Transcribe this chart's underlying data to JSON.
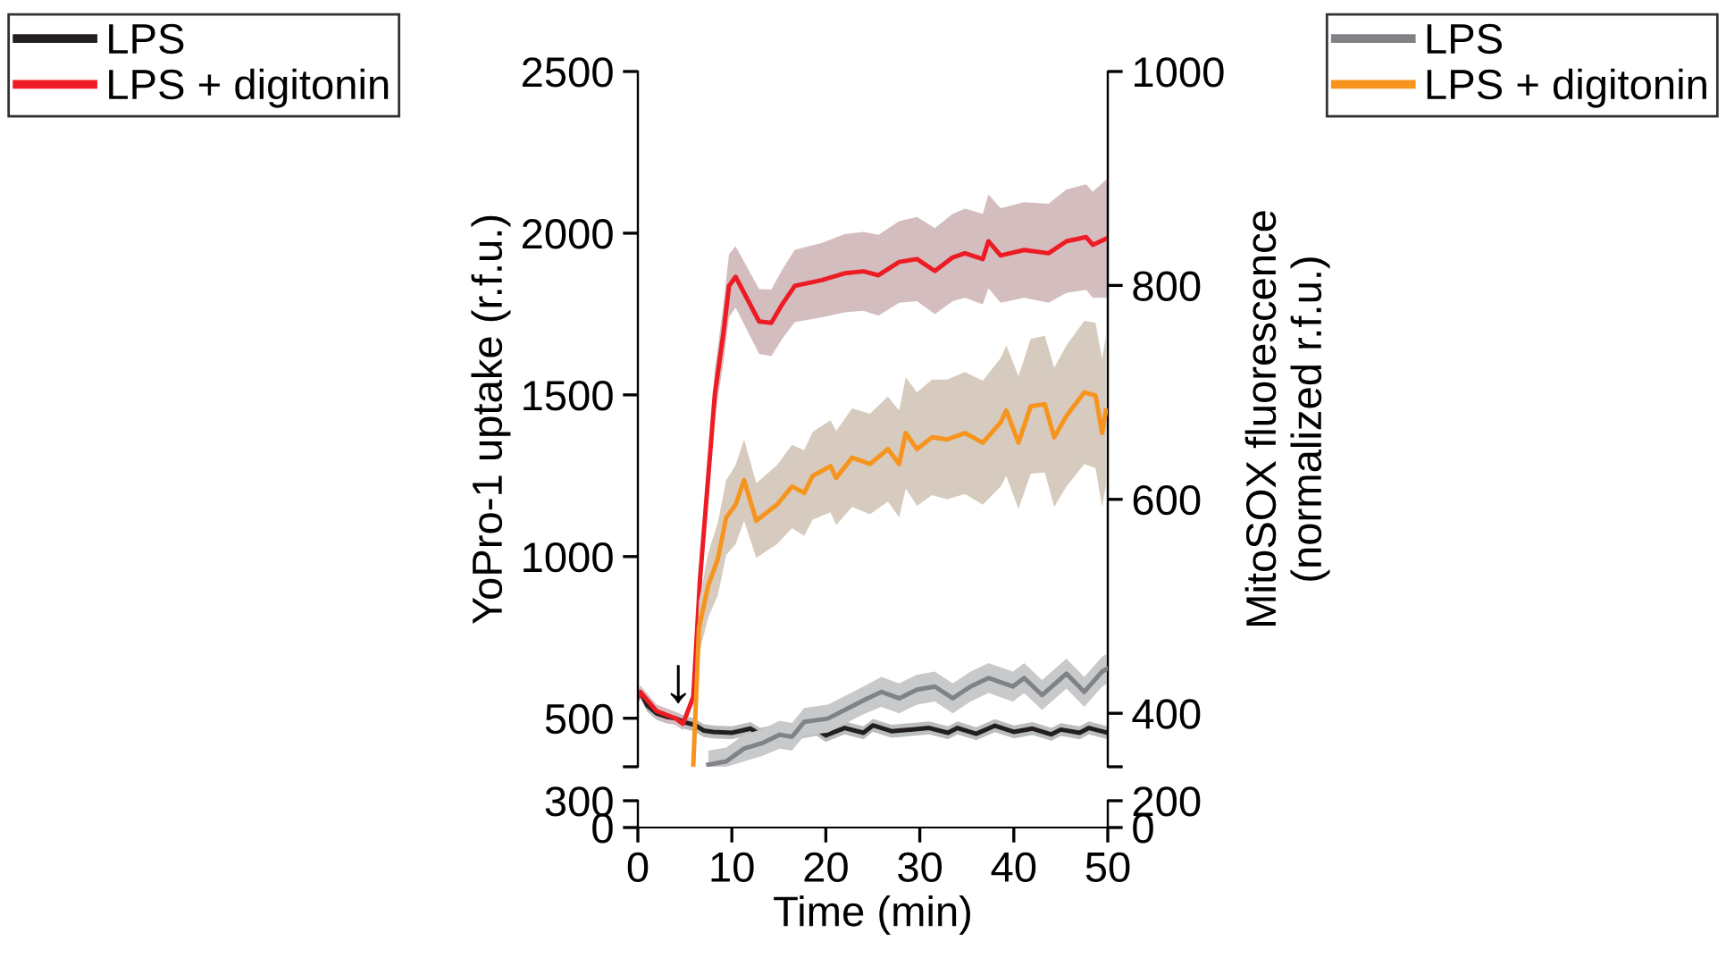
{
  "chart_data": [
    {
      "type": "line",
      "ylabel": "YoPro-1 uptake (r.f.u.)",
      "y2label": "MitoSOX fluorescence\n(normalized r.f.u.)",
      "xlim": [
        0,
        50
      ],
      "xticks": [
        0,
        10,
        20,
        30,
        40,
        50
      ],
      "ylim": [
        350,
        2500
      ],
      "yticks": [
        {
          "value": 350,
          "label": null
        },
        500,
        1000,
        1500,
        2000,
        2500
      ],
      "y2lim": [
        350,
        1000
      ],
      "y2ticks": [
        {
          "value": 350,
          "label": null
        },
        400,
        600,
        800,
        1000
      ],
      "tick_labels": "y",
      "legend": "top left",
      "grid": false,
      "line_style": "solid",
      "marker": "none",
      "annotations": [
        "↓"
      ],
      "series": [
        {
          "name": "LPS",
          "color": "#231f20",
          "x": [
            0,
            0.3,
            1,
            2,
            3,
            4,
            5,
            6,
            7,
            8,
            10,
            12,
            13,
            15,
            17,
            19,
            20,
            22,
            24,
            25,
            27,
            29,
            31,
            33,
            34,
            36,
            38,
            40,
            42,
            44,
            45,
            47,
            48,
            50
          ],
          "values": [
            566,
            580,
            540,
            515,
            505,
            500,
            487,
            480,
            462,
            458,
            455,
            468,
            450,
            462,
            455,
            466,
            447,
            470,
            455,
            478,
            460,
            465,
            470,
            455,
            470,
            452,
            477,
            458,
            468,
            450,
            465,
            455,
            470,
            455
          ],
          "lower": [
            546,
            560,
            520,
            495,
            485,
            480,
            467,
            460,
            442,
            438,
            435,
            448,
            430,
            442,
            435,
            446,
            427,
            450,
            435,
            458,
            440,
            445,
            450,
            435,
            450,
            432,
            457,
            438,
            448,
            430,
            445,
            435,
            450,
            435
          ],
          "upper": [
            586,
            600,
            560,
            535,
            525,
            520,
            507,
            500,
            482,
            478,
            475,
            488,
            470,
            482,
            475,
            486,
            467,
            490,
            475,
            498,
            480,
            485,
            490,
            475,
            490,
            472,
            497,
            478,
            488,
            470,
            485,
            475,
            490,
            475
          ]
        },
        {
          "name": "LPS + digitonin",
          "color": "#ed1c24",
          "x": [
            0,
            0.3,
            2,
            4,
            4.8,
            5.9,
            6.6,
            8.2,
            9.1,
            9.7,
            10.4,
            12.9,
            14.2,
            15.4,
            16.7,
            19.6,
            22,
            24,
            25.6,
            27.8,
            29.7,
            31.6,
            33.5,
            34.8,
            36.7,
            37.3,
            38.6,
            41.1,
            43.7,
            45.6,
            47.7,
            48.4,
            50
          ],
          "values": [
            566,
            580,
            522,
            500,
            483,
            566,
            925,
            1505,
            1690,
            1837,
            1865,
            1727,
            1723,
            1782,
            1837,
            1855,
            1876,
            1882,
            1870,
            1911,
            1920,
            1883,
            1925,
            1938,
            1920,
            1975,
            1931,
            1948,
            1938,
            1975,
            1988,
            1964,
            1985
          ],
          "lower": [
            546,
            560,
            502,
            480,
            463,
            546,
            880,
            1430,
            1600,
            1740,
            1770,
            1627,
            1620,
            1675,
            1725,
            1740,
            1755,
            1760,
            1745,
            1785,
            1790,
            1750,
            1790,
            1800,
            1780,
            1830,
            1785,
            1800,
            1785,
            1815,
            1825,
            1800,
            1800
          ],
          "upper": [
            586,
            600,
            542,
            520,
            503,
            586,
            970,
            1580,
            1780,
            1935,
            1960,
            1827,
            1826,
            1889,
            1949,
            1970,
            1997,
            2004,
            1995,
            2037,
            2050,
            2016,
            2060,
            2076,
            2060,
            2120,
            2077,
            2096,
            2091,
            2135,
            2151,
            2128,
            2170
          ]
        },
        {
          "name": "LPS",
          "color": "#808285",
          "axis": "y2",
          "x": [
            7.5,
            9.4,
            11.3,
            13.2,
            15.1,
            16.4,
            17.7,
            20.2,
            22,
            24,
            25.9,
            27.8,
            29.7,
            31.6,
            33.5,
            35.4,
            37.3,
            39.9,
            41.1,
            43,
            45.6,
            47.5,
            49.4,
            50
          ],
          "values": [
            352,
            355,
            367,
            372,
            380,
            378,
            392,
            395,
            403,
            412,
            420,
            414,
            422,
            425,
            414,
            425,
            433,
            425,
            433,
            417,
            437,
            420,
            439,
            442
          ],
          "lower": [
            350,
            350,
            355,
            360,
            367,
            365,
            379,
            382,
            390,
            399,
            406,
            400,
            408,
            411,
            400,
            411,
            419,
            411,
            419,
            403,
            423,
            406,
            425,
            428
          ],
          "upper": [
            365,
            368,
            380,
            385,
            393,
            391,
            405,
            408,
            416,
            425,
            434,
            428,
            436,
            439,
            428,
            439,
            447,
            439,
            447,
            431,
            451,
            434,
            453,
            456
          ]
        },
        {
          "name": "LPS + digitonin",
          "color": "#f7941d",
          "axis": "y2",
          "x": [
            5.9,
            6.5,
            7.5,
            8.5,
            9.4,
            10.4,
            11.3,
            12.6,
            13.9,
            14.8,
            16.4,
            17.7,
            18.6,
            20.5,
            21.1,
            22.8,
            24.7,
            26.6,
            27.8,
            28.5,
            29.7,
            31.3,
            32.9,
            34.8,
            36.7,
            38.6,
            39.2,
            40.5,
            41.8,
            43.3,
            44.3,
            45.6,
            47.5,
            48.7,
            49.4,
            49.8
          ],
          "values": [
            352,
            480,
            520,
            544,
            583,
            595,
            618,
            580,
            589,
            595,
            612,
            606,
            622,
            631,
            620,
            639,
            633,
            647,
            633,
            662,
            647,
            658,
            656,
            662,
            653,
            672,
            683,
            653,
            687,
            689,
            658,
            678,
            700,
            697,
            662,
            683
          ],
          "lower": [
            350,
            455,
            490,
            510,
            548,
            558,
            580,
            545,
            553,
            558,
            573,
            566,
            581,
            588,
            576,
            593,
            586,
            598,
            583,
            610,
            594,
            604,
            600,
            605,
            595,
            612,
            622,
            591,
            624,
            625,
            593,
            612,
            633,
            629,
            593,
            613
          ],
          "upper": [
            380,
            505,
            550,
            578,
            618,
            632,
            656,
            615,
            625,
            632,
            651,
            646,
            663,
            674,
            664,
            685,
            680,
            696,
            683,
            714,
            700,
            712,
            712,
            719,
            711,
            732,
            744,
            715,
            750,
            753,
            723,
            744,
            767,
            765,
            731,
            753
          ]
        }
      ]
    },
    {
      "type": "line",
      "xlabel": "Time (min)",
      "xlim": [
        0,
        50
      ],
      "xticks": [
        0,
        10,
        20,
        30,
        40,
        50
      ],
      "ylim": [
        0,
        300
      ],
      "yticks": [
        0,
        300
      ],
      "y2lim": [
        0,
        200
      ],
      "y2ticks": [
        0,
        200
      ],
      "grid": false
    }
  ]
}
